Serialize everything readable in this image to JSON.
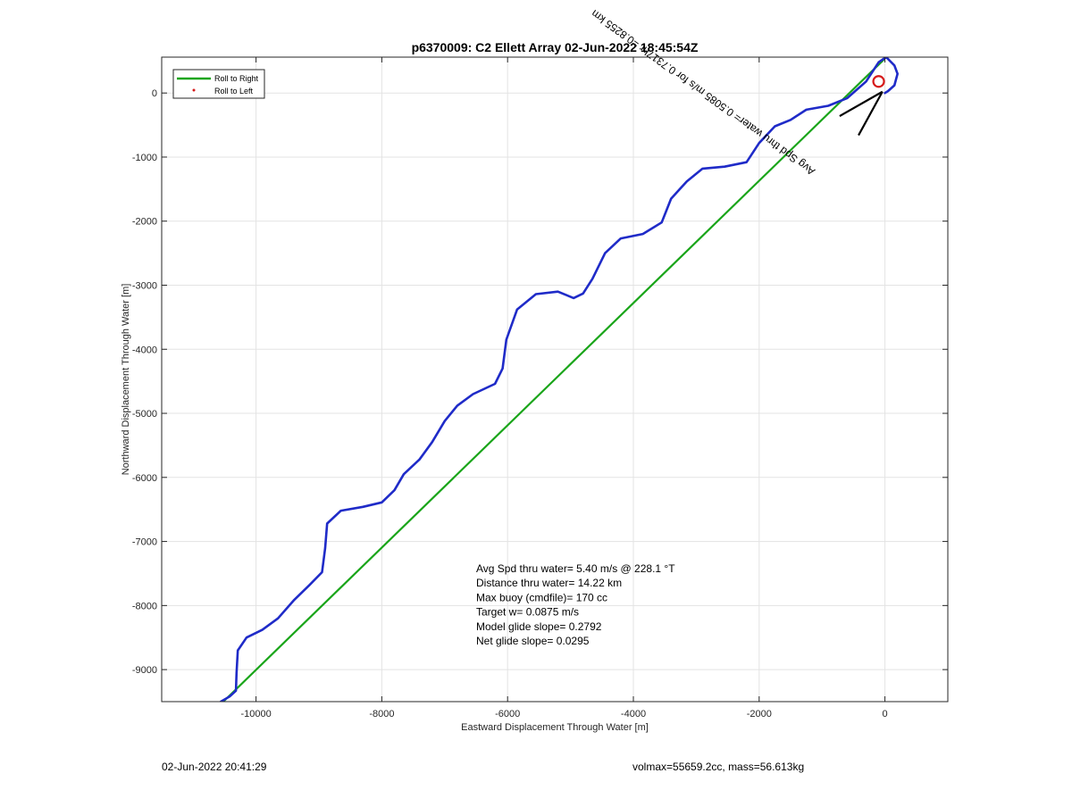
{
  "chart_data": {
    "type": "line",
    "title": "p6370009: C2 Ellett Array 02-Jun-2022 18:45:54Z",
    "xlabel": "Eastward Displacement Through Water [m]",
    "ylabel": "Northward Displacement Through Water [m]",
    "xlim": [
      -11500,
      1000
    ],
    "ylim": [
      -9500,
      560
    ],
    "xticks": [
      -10000,
      -8000,
      -6000,
      -4000,
      -2000,
      0
    ],
    "yticks": [
      -9000,
      -8000,
      -7000,
      -6000,
      -5000,
      -4000,
      -3000,
      -2000,
      -1000,
      0
    ],
    "grid": true,
    "legend": {
      "placement": "top-left",
      "entries": [
        {
          "label": "Roll to Right",
          "color": "#1aa51a",
          "marker": "line"
        },
        {
          "label": "Roll to Left",
          "color": "#d61a1a",
          "marker": "dot"
        }
      ]
    },
    "series": [
      {
        "name": "Roll to Right",
        "color": "#1aa51a",
        "points": [
          [
            -10520,
            -9500
          ],
          [
            -20,
            520
          ]
        ]
      },
      {
        "color": "#1f2bc8",
        "points": [
          [
            -10560,
            -9500
          ],
          [
            -10420,
            -9420
          ],
          [
            -10320,
            -9330
          ],
          [
            -10310,
            -9050
          ],
          [
            -10290,
            -8700
          ],
          [
            -10150,
            -8500
          ],
          [
            -9900,
            -8380
          ],
          [
            -9650,
            -8200
          ],
          [
            -9400,
            -7920
          ],
          [
            -9150,
            -7680
          ],
          [
            -8950,
            -7480
          ],
          [
            -8900,
            -7100
          ],
          [
            -8870,
            -6720
          ],
          [
            -8650,
            -6520
          ],
          [
            -8300,
            -6460
          ],
          [
            -8000,
            -6390
          ],
          [
            -7800,
            -6200
          ],
          [
            -7650,
            -5950
          ],
          [
            -7400,
            -5720
          ],
          [
            -7200,
            -5450
          ],
          [
            -7000,
            -5120
          ],
          [
            -6800,
            -4880
          ],
          [
            -6550,
            -4700
          ],
          [
            -6200,
            -4540
          ],
          [
            -6080,
            -4300
          ],
          [
            -6020,
            -3850
          ],
          [
            -5850,
            -3380
          ],
          [
            -5550,
            -3140
          ],
          [
            -5200,
            -3100
          ],
          [
            -4950,
            -3200
          ],
          [
            -4800,
            -3130
          ],
          [
            -4650,
            -2900
          ],
          [
            -4450,
            -2500
          ],
          [
            -4200,
            -2270
          ],
          [
            -3850,
            -2200
          ],
          [
            -3550,
            -2020
          ],
          [
            -3400,
            -1650
          ],
          [
            -3150,
            -1380
          ],
          [
            -2900,
            -1180
          ],
          [
            -2550,
            -1150
          ],
          [
            -2200,
            -1080
          ],
          [
            -2000,
            -780
          ],
          [
            -1750,
            -520
          ],
          [
            -1500,
            -420
          ],
          [
            -1250,
            -260
          ],
          [
            -900,
            -200
          ],
          [
            -600,
            -80
          ],
          [
            -300,
            180
          ],
          [
            -100,
            480
          ],
          [
            20,
            560
          ],
          [
            150,
            430
          ],
          [
            200,
            300
          ],
          [
            150,
            120
          ],
          [
            50,
            30
          ],
          [
            0,
            0
          ]
        ]
      }
    ],
    "markers": [
      {
        "type": "circle",
        "x": -100,
        "y": 180,
        "color": "#d61a1a"
      }
    ],
    "vectors": [
      {
        "x0": -40,
        "y0": 20,
        "x1": -720,
        "y1": -360,
        "color": "#000000"
      },
      {
        "x0": -40,
        "y0": 20,
        "x1": -420,
        "y1": -660,
        "color": "#000000"
      }
    ],
    "vector_label": {
      "text": "Avg Spd thru water= 0.5085 m/s for 0.7317hr =0.8255 km",
      "x": -1100,
      "y": -1200,
      "angle": 36,
      "color": "#000000"
    },
    "stats": [
      "Avg Spd thru water=  5.40 m/s @ 228.1 °T",
      "Distance thru water= 14.22 km",
      "Max buoy (cmdfile)= 170 cc",
      "Target w= 0.0875 m/s",
      "Model glide slope= 0.2792",
      "Net glide slope= 0.0295"
    ]
  },
  "footer": {
    "left": "02-Jun-2022 20:41:29",
    "right": "volmax=55659.2cc, mass=56.613kg"
  }
}
